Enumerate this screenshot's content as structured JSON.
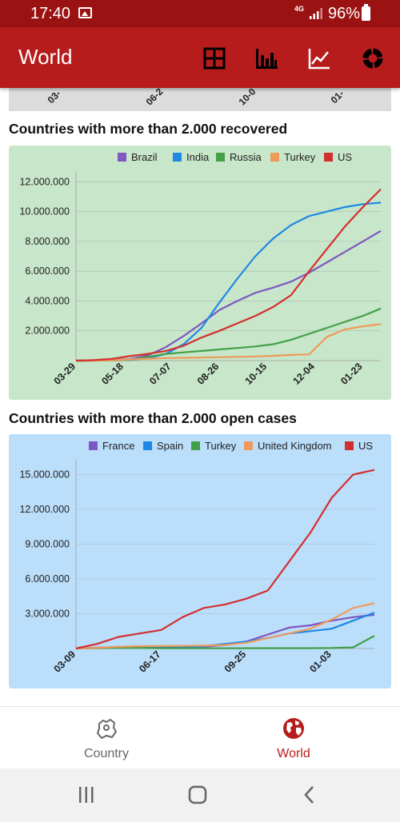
{
  "status_bar": {
    "time": "17:40",
    "network": "4G",
    "battery": "96%"
  },
  "app_bar": {
    "title": "World",
    "icons": [
      "table-icon",
      "bar-chart-icon",
      "line-chart-icon",
      "donut-chart-icon"
    ]
  },
  "previous_chart": {
    "ticks": [
      "03-",
      "06-2",
      "10-0",
      "01-"
    ]
  },
  "sections": [
    {
      "title": "Countries with more than 2.000 recovered"
    },
    {
      "title": "Countries with more than 2.000 open cases"
    }
  ],
  "colors": {
    "brand": "#b71c1c",
    "status_bar": "#9b1212",
    "recovered_bg": "#c8e6c9",
    "open_bg": "#bbdefb"
  },
  "chart_data": [
    {
      "type": "line",
      "title": "Countries with more than 2.000 recovered",
      "legend_position": "top",
      "grid": true,
      "x_ticks": [
        "03-29",
        "05-18",
        "07-07",
        "08-26",
        "10-15",
        "12-04",
        "01-23"
      ],
      "x": [
        "03-29",
        "04-18",
        "05-08",
        "05-28",
        "06-17",
        "07-07",
        "07-27",
        "08-16",
        "09-05",
        "09-25",
        "10-15",
        "11-04",
        "11-24",
        "12-04",
        "12-14",
        "01-03",
        "01-23",
        "02-02"
      ],
      "y_ticks": [
        "2.000.000",
        "4.000.000",
        "6.000.000",
        "8.000.000",
        "10.000.000",
        "12.000.000"
      ],
      "ylim": [
        0,
        12500000
      ],
      "series": [
        {
          "name": "Brazil",
          "color": "#7e57c2",
          "values": [
            0,
            5000,
            30000,
            100000,
            350000,
            900000,
            1650000,
            2500000,
            3400000,
            4000000,
            4550000,
            4900000,
            5300000,
            5900000,
            6600000,
            7300000,
            8000000,
            8700000
          ]
        },
        {
          "name": "India",
          "color": "#1e88e5",
          "values": [
            0,
            3000,
            15000,
            40000,
            150000,
            450000,
            1100000,
            2200000,
            3900000,
            5500000,
            7000000,
            8200000,
            9100000,
            9700000,
            10000000,
            10300000,
            10500000,
            10600000
          ]
        },
        {
          "name": "Russia",
          "color": "#43a047",
          "values": [
            0,
            2000,
            10000,
            50000,
            250000,
            450000,
            550000,
            650000,
            750000,
            850000,
            950000,
            1100000,
            1400000,
            1800000,
            2200000,
            2600000,
            3000000,
            3500000
          ]
        },
        {
          "name": "Turkey",
          "color": "#ef9a5a",
          "values": [
            0,
            2000,
            20000,
            80000,
            130000,
            170000,
            190000,
            210000,
            230000,
            250000,
            280000,
            320000,
            380000,
            420000,
            1600000,
            2100000,
            2300000,
            2450000
          ]
        },
        {
          "name": "US",
          "color": "#d32f2f",
          "values": [
            0,
            30000,
            120000,
            300000,
            450000,
            650000,
            1000000,
            1550000,
            2000000,
            2500000,
            3000000,
            3600000,
            4400000,
            6000000,
            7500000,
            9000000,
            10300000,
            11500000
          ]
        }
      ]
    },
    {
      "type": "line",
      "title": "Countries with more than 2.000 open cases",
      "legend_position": "top",
      "grid": true,
      "x_ticks": [
        "03-09",
        "06-17",
        "09-25",
        "01-03"
      ],
      "x": [
        "03-09",
        "04-02",
        "04-27",
        "05-21",
        "06-17",
        "07-11",
        "08-05",
        "08-29",
        "09-25",
        "10-20",
        "11-14",
        "12-09",
        "01-03",
        "01-27",
        "02-10"
      ],
      "y_ticks": [
        "3.000.000",
        "6.000.000",
        "9.000.000",
        "12.000.000",
        "15.000.000"
      ],
      "ylim": [
        0,
        16000000
      ],
      "series": [
        {
          "name": "France",
          "color": "#7e57c2",
          "values": [
            0,
            60000,
            90000,
            90000,
            90000,
            100000,
            150000,
            300000,
            600000,
            1200000,
            1800000,
            2000000,
            2400000,
            2700000,
            2900000
          ]
        },
        {
          "name": "Spain",
          "color": "#1e88e5",
          "values": [
            0,
            80000,
            100000,
            70000,
            60000,
            80000,
            200000,
            400000,
            600000,
            900000,
            1300000,
            1500000,
            1700000,
            2400000,
            3100000
          ]
        },
        {
          "name": "Turkey",
          "color": "#43a047",
          "values": [
            0,
            20000,
            60000,
            40000,
            30000,
            30000,
            20000,
            20000,
            30000,
            30000,
            30000,
            30000,
            40000,
            100000,
            1100000
          ]
        },
        {
          "name": "United Kingdom",
          "color": "#ef9a5a",
          "values": [
            0,
            60000,
            150000,
            200000,
            220000,
            230000,
            250000,
            300000,
            500000,
            900000,
            1300000,
            1700000,
            2500000,
            3500000,
            3900000
          ]
        },
        {
          "name": "US",
          "color": "#d32f2f",
          "values": [
            0,
            400000,
            1000000,
            1300000,
            1600000,
            2700000,
            3500000,
            3800000,
            4300000,
            5000000,
            7500000,
            10000000,
            13000000,
            15000000,
            15400000
          ]
        }
      ]
    }
  ],
  "bottom_nav": {
    "items": [
      {
        "label": "Country"
      },
      {
        "label": "World"
      }
    ]
  }
}
